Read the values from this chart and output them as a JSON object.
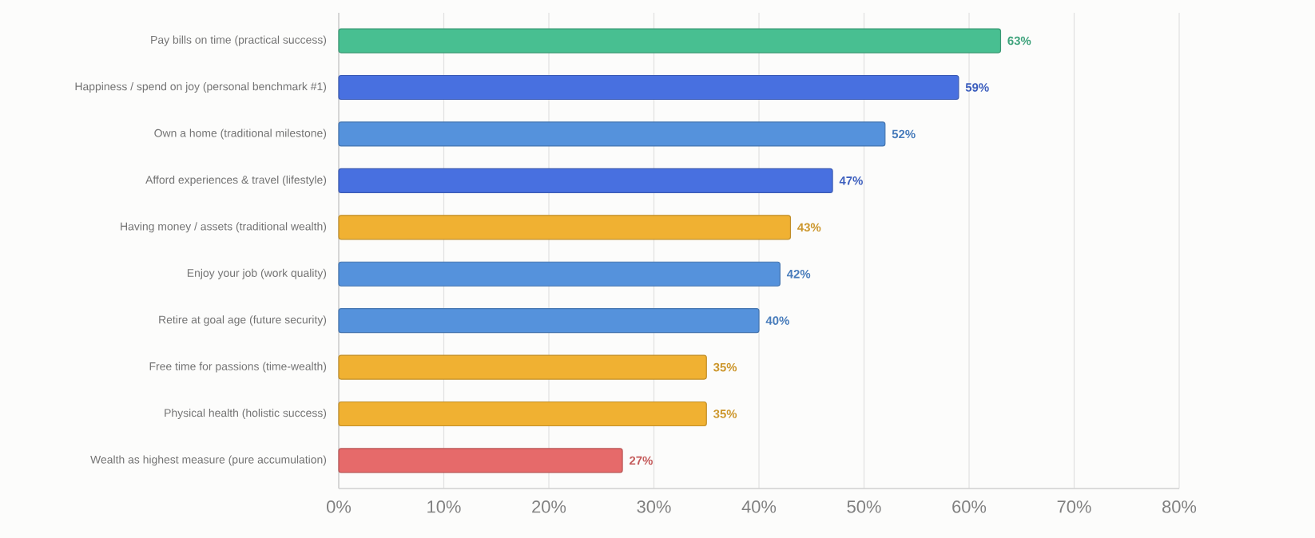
{
  "chart_data": {
    "type": "bar",
    "orientation": "horizontal",
    "categories": [
      "Pay bills on time (practical success)",
      "Happiness / spend on joy (personal benchmark #1)",
      "Own a home (traditional milestone)",
      "Afford experiences & travel (lifestyle)",
      "Having money / assets (traditional wealth)",
      "Enjoy your job (work quality)",
      "Retire at goal age (future security)",
      "Free time for passions (time-wealth)",
      "Physical health (holistic success)",
      "Wealth as highest measure (pure accumulation)"
    ],
    "values": [
      63,
      59,
      52,
      47,
      43,
      42,
      40,
      35,
      35,
      27
    ],
    "value_labels": [
      "63%",
      "59%",
      "52%",
      "47%",
      "43%",
      "42%",
      "40%",
      "35%",
      "35%",
      "27%"
    ],
    "colors": [
      "#48bf91",
      "#4870e0",
      "#5592dc",
      "#4870e0",
      "#f0b132",
      "#5592dc",
      "#5592dc",
      "#f0b132",
      "#f0b132",
      "#e66a6a"
    ],
    "xlim": [
      0,
      80
    ],
    "xticks": [
      {
        "value": 0,
        "label": "0%"
      },
      {
        "value": 10,
        "label": "10%"
      },
      {
        "value": 20,
        "label": "20%"
      },
      {
        "value": 30,
        "label": "30%"
      },
      {
        "value": 40,
        "label": "40%"
      },
      {
        "value": 50,
        "label": "50%"
      },
      {
        "value": 60,
        "label": "60%"
      },
      {
        "value": 70,
        "label": "70%"
      },
      {
        "value": 80,
        "label": "80%"
      }
    ],
    "grid": "x"
  }
}
